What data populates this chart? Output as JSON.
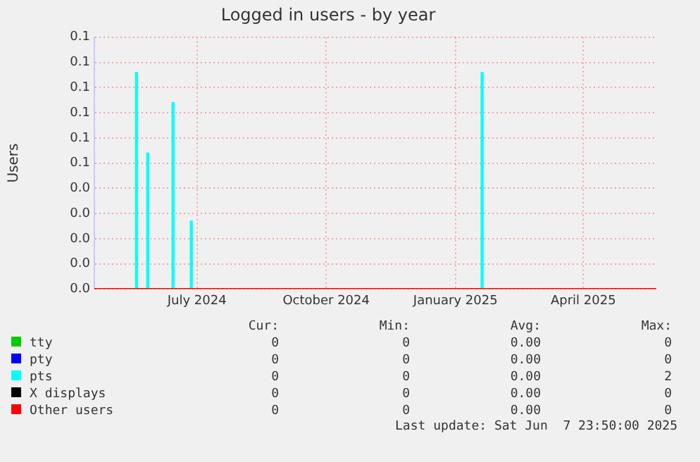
{
  "chart_data": {
    "type": "line",
    "title": "Logged in users - by year",
    "ylabel": "Users",
    "xlim": [
      "2024-05-03",
      "2025-06-07"
    ],
    "xticks": [
      {
        "value": "2024-07-15",
        "label": "July 2024"
      },
      {
        "value": "2024-10-15",
        "label": "October 2024"
      },
      {
        "value": "2025-01-15",
        "label": "January 2025"
      },
      {
        "value": "2025-04-16",
        "label": "April 2025"
      }
    ],
    "ylim": [
      0,
      0.1
    ],
    "yticks": [
      {
        "value": 0,
        "label": "0.0"
      },
      {
        "value": 0.01,
        "label": "0.0"
      },
      {
        "value": 0.02,
        "label": "0.0"
      },
      {
        "value": 0.03,
        "label": "0.0"
      },
      {
        "value": 0.04,
        "label": "0.0"
      },
      {
        "value": 0.05,
        "label": "0.1"
      },
      {
        "value": 0.06,
        "label": "0.1"
      },
      {
        "value": 0.07,
        "label": "0.1"
      },
      {
        "value": 0.08,
        "label": "0.1"
      },
      {
        "value": 0.09,
        "label": "0.1"
      },
      {
        "value": 0.1,
        "label": "0.1"
      }
    ],
    "grid": true,
    "legend": "bottom",
    "marker": "none",
    "line_style": "solid",
    "series": [
      {
        "name": "tty",
        "color": "#00cc00",
        "values": [
          null,
          null
        ]
      },
      {
        "name": "pty",
        "color": "#0000ff",
        "values": [
          null,
          null
        ]
      },
      {
        "name": "X displays",
        "color": "#000000",
        "values": [
          null,
          null
        ]
      },
      {
        "name": "Other users",
        "color": "#ff0000",
        "x": [
          "2024-05-03",
          "2025-06-07"
        ],
        "values": [
          0,
          0
        ]
      },
      {
        "name": "pts",
        "type": "bar",
        "color": "#00ffff",
        "x": [
          "2024-06-02",
          "2024-06-10",
          "2024-06-28",
          "2024-07-11",
          "2025-02-03"
        ],
        "values": [
          0.086,
          0.054,
          0.074,
          0.027,
          0.086
        ]
      }
    ],
    "annotations": [
      "Cur:",
      "Min:",
      "Avg:",
      "Max:",
      "0",
      "0",
      "0.00",
      "0",
      "0",
      "0",
      "0.00",
      "0",
      "0",
      "0",
      "0.00",
      "0",
      "0",
      "0",
      "0.00",
      "0",
      "0",
      "0",
      "0.00",
      "2",
      "Last update: Sat Jun  7 23:50:00 2025"
    ]
  }
}
